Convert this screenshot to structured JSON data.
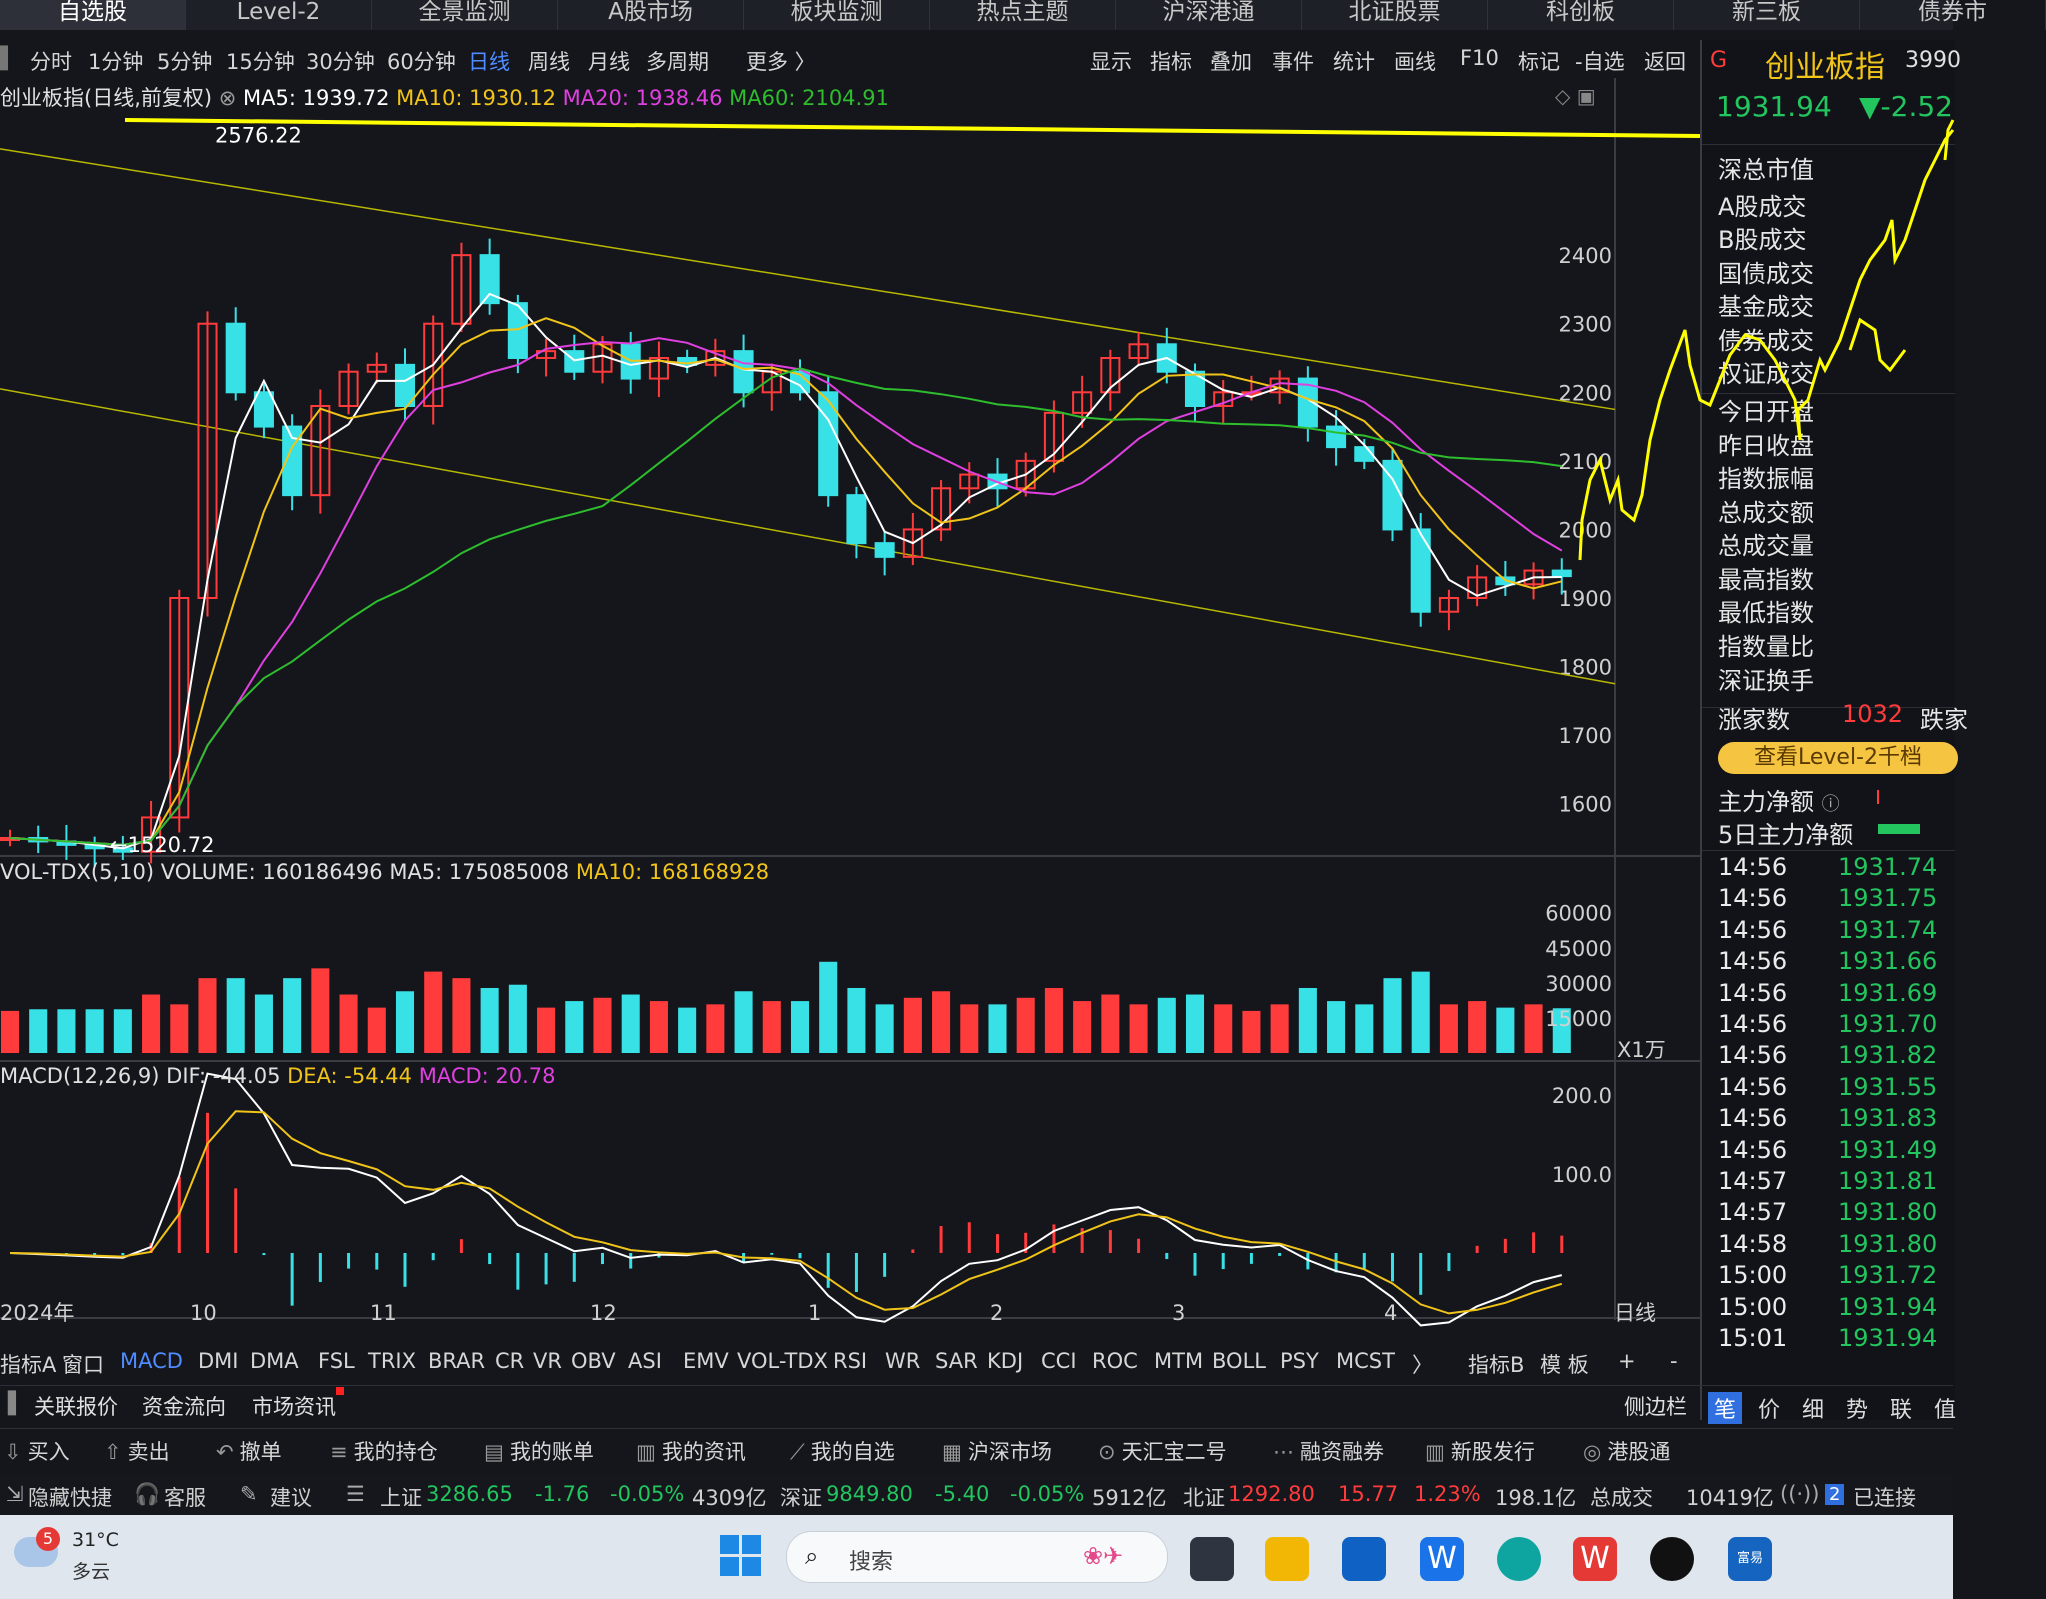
{
  "top_tabs": [
    "自选股",
    "Level-2",
    "全景监测",
    "A股市场",
    "板块监测",
    "热点主题",
    "沪深港通",
    "北证股票",
    "科创板",
    "新三板",
    "债券市"
  ],
  "periods": [
    "分时",
    "1分钟",
    "5分钟",
    "15分钟",
    "30分钟",
    "60分钟",
    "日线",
    "周线",
    "月线",
    "多周期",
    "更多 〉"
  ],
  "period_active": "日线",
  "tools": [
    "显示",
    "指标",
    "叠加",
    "事件",
    "统计",
    "画线",
    "F10",
    "标记",
    "-自选",
    "返回"
  ],
  "chart": {
    "title": "创业板指(日线,前复权)",
    "ma5": "MA5: 1939.72",
    "ma10": "MA10: 1930.12",
    "ma20": "MA20: 1938.46",
    "ma60": "MA60: 2104.91",
    "high_label": "2576.22",
    "low_label": "←1520.72",
    "y_ticks": [
      "2400",
      "2300",
      "2200",
      "2100",
      "2000",
      "1900",
      "1800",
      "1700",
      "1600"
    ],
    "vol_legend": "VOL-TDX(5,10) VOLUME: 160186496  MA5: 175085008",
    "vol_ma10": "MA10: 168168928",
    "vol_ticks": [
      "60000",
      "45000",
      "30000",
      "15000"
    ],
    "vol_unit": "X1万",
    "macd_legend": "MACD(12,26,9) DIF: -44.05",
    "macd_dea": "DEA: -54.44",
    "macd_val": "MACD: 20.78",
    "macd_ticks": [
      "200.0",
      "100.0"
    ],
    "x_labels": [
      "2024年",
      "10",
      "11",
      "12",
      "1",
      "2",
      "3",
      "4"
    ],
    "x_period": "日线"
  },
  "chart_data": {
    "type": "candlestick",
    "title": "创业板指(日线,前复权)",
    "ylim": [
      1550,
      2600
    ],
    "high": 2576.22,
    "low": 1520.72,
    "months": [
      "2024年",
      "10",
      "11",
      "12",
      "1",
      "2",
      "3",
      "4"
    ],
    "close_series": [
      1550,
      1545,
      1540,
      1535,
      1530,
      1580,
      1900,
      2300,
      2200,
      2150,
      2050,
      2180,
      2230,
      2240,
      2180,
      2300,
      2400,
      2330,
      2250,
      2260,
      2230,
      2270,
      2220,
      2250,
      2240,
      2260,
      2200,
      2230,
      2200,
      2050,
      1980,
      1960,
      2000,
      2060,
      2080,
      2060,
      2100,
      2170,
      2200,
      2250,
      2270,
      2230,
      2180,
      2200,
      2200,
      2220,
      2150,
      2120,
      2100,
      2000,
      1880,
      1900,
      1930,
      1920,
      1940,
      1931.94
    ],
    "indicators": {
      "MA5": 1939.72,
      "MA10": 1930.12,
      "MA20": 1938.46,
      "MA60": 2104.91
    },
    "volume": {
      "latest": 160186496,
      "MA5": 175085008,
      "MA10": 168168928
    },
    "macd": {
      "DIF": -44.05,
      "DEA": -54.44,
      "MACD": 20.78
    }
  },
  "right": {
    "index_name": "创业板指",
    "index_code": "3990",
    "price": "1931.94",
    "change": "▼-2.52",
    "labels": [
      "深总市值",
      "A股成交",
      "B股成交",
      "国债成交",
      "基金成交",
      "债券成交",
      "权证成交",
      "今日开盘",
      "昨日收盘",
      "指数振幅",
      "总成交额",
      "总成交量",
      "最高指数",
      "最低指数",
      "指数量比",
      "深证换手"
    ],
    "up_label": "涨家数",
    "up_count": "1032",
    "down_label": "跌家",
    "level2_btn": "查看Level-2千档",
    "main_flow": "主力净额",
    "main_flow5": "5日主力净额",
    "ticks": [
      {
        "t": "14:56",
        "p": "1931.74"
      },
      {
        "t": "14:56",
        "p": "1931.75"
      },
      {
        "t": "14:56",
        "p": "1931.74"
      },
      {
        "t": "14:56",
        "p": "1931.66"
      },
      {
        "t": "14:56",
        "p": "1931.69"
      },
      {
        "t": "14:56",
        "p": "1931.70"
      },
      {
        "t": "14:56",
        "p": "1931.82"
      },
      {
        "t": "14:56",
        "p": "1931.55"
      },
      {
        "t": "14:56",
        "p": "1931.83"
      },
      {
        "t": "14:56",
        "p": "1931.49"
      },
      {
        "t": "14:57",
        "p": "1931.81"
      },
      {
        "t": "14:57",
        "p": "1931.80"
      },
      {
        "t": "14:58",
        "p": "1931.80"
      },
      {
        "t": "15:00",
        "p": "1931.72"
      },
      {
        "t": "15:00",
        "p": "1931.94"
      },
      {
        "t": "15:01",
        "p": "1931.94"
      }
    ],
    "bottom_tabs": [
      "笔",
      "价",
      "细",
      "势",
      "联",
      "值"
    ]
  },
  "indicator_tabs": [
    "指标A",
    "窗口",
    "MACD",
    "DMI",
    "DMA",
    "FSL",
    "TRIX",
    "BRAR",
    "CR",
    "VR",
    "OBV",
    "ASI",
    "EMV",
    "VOL-TDX",
    "RSI",
    "WR",
    "SAR",
    "KDJ",
    "CCI",
    "ROC",
    "MTM",
    "BOLL",
    "PSY",
    "MCST",
    "〉",
    "指标B",
    "模 板",
    "+",
    "-"
  ],
  "indicator_active": "MACD",
  "info_tabs": [
    "关联报价",
    "资金流向",
    "市场资讯"
  ],
  "sidebar_btn": "侧边栏",
  "actions": [
    "买入",
    "卖出",
    "撤单",
    "我的持仓",
    "我的账单",
    "我的资讯",
    "我的自选",
    "沪深市场",
    "天汇宝二号",
    "融资融券",
    "新股发行",
    "港股通"
  ],
  "status": {
    "hide": "隐藏快捷",
    "service": "客服",
    "suggest": "建议",
    "sh_label": "上证",
    "sh_val": "3286.65",
    "sh_chg": "-1.76",
    "sh_pct": "-0.05%",
    "sh_amt": "4309亿",
    "sz_label": "深证",
    "sz_val": "9849.80",
    "sz_chg": "-5.40",
    "sz_pct": "-0.05%",
    "sz_amt": "5912亿",
    "bz_label": "北证",
    "bz_val": "1292.80",
    "bz_chg": "15.77",
    "bz_pct": "1.23%",
    "bz_amt": "198.1亿",
    "total_label": "总成交",
    "total_amt": "10419亿",
    "conn_count": "2",
    "conn": "已连接"
  },
  "taskbar": {
    "weather_badge": "5",
    "temp": "31°C",
    "weather": "多云",
    "search": "搜索"
  },
  "colors": {
    "up": "#ff3b3b",
    "down": "#38e1e6",
    "ma5": "#ffffff",
    "ma10": "#f0c419",
    "ma20": "#e040e0",
    "ma60": "#2dbd2d",
    "accent": "#4f8cff",
    "annot": "#ffff00"
  }
}
